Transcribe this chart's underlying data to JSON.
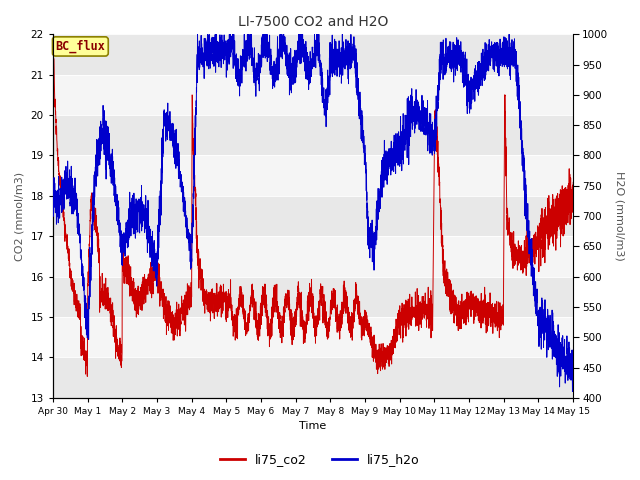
{
  "title": "LI-7500 CO2 and H2O",
  "xlabel": "Time",
  "ylabel_left": "CO2 (mmol/m3)",
  "ylabel_right": "H2O (mmol/m3)",
  "annotation": "BC_flux",
  "ylim_left": [
    13.0,
    22.0
  ],
  "ylim_right": [
    400,
    1000
  ],
  "yticks_left": [
    13.0,
    14.0,
    15.0,
    16.0,
    17.0,
    18.0,
    19.0,
    20.0,
    21.0,
    22.0
  ],
  "yticks_right": [
    400,
    450,
    500,
    550,
    600,
    650,
    700,
    750,
    800,
    850,
    900,
    950,
    1000
  ],
  "co2_color": "#cc0000",
  "h2o_color": "#0000cc",
  "background_color": "#ffffff",
  "legend_labels": [
    "li75_co2",
    "li75_h2o"
  ],
  "figsize": [
    6.4,
    4.8
  ],
  "dpi": 100,
  "band_colors": [
    "#e8e8e8",
    "#f5f5f5"
  ],
  "n_days": 15
}
